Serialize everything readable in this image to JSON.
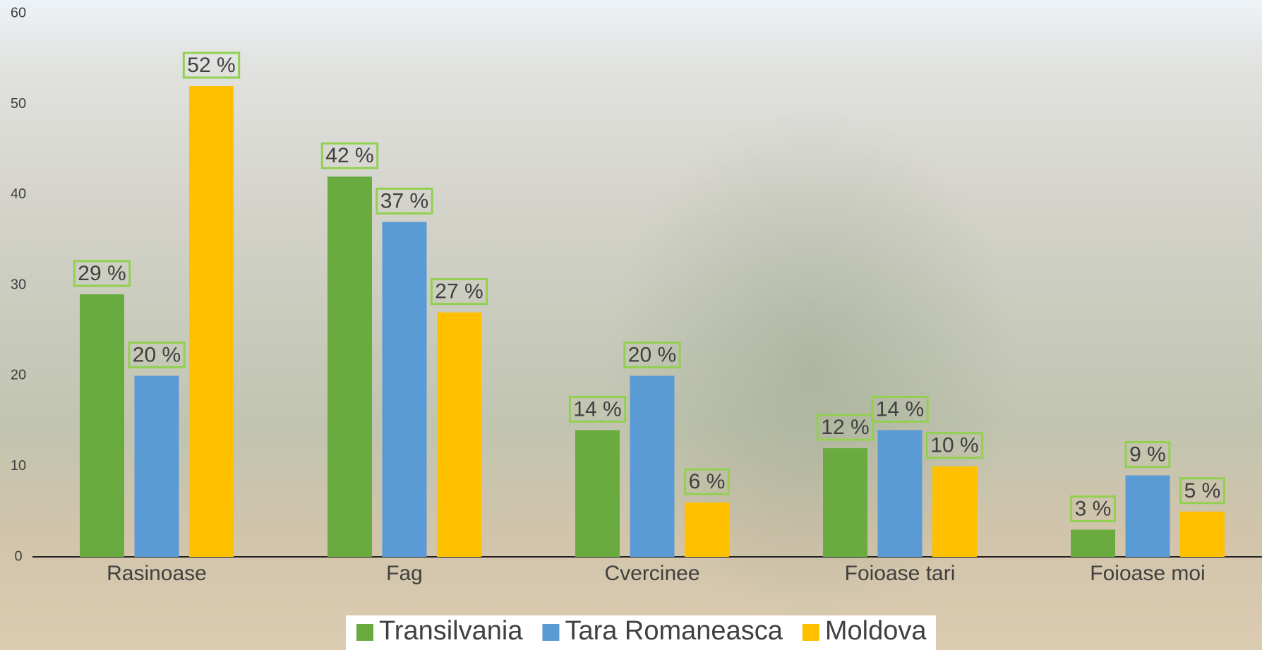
{
  "chart_data": {
    "type": "bar",
    "categories": [
      "Rasinoase",
      "Fag",
      "Cvercinee",
      "Foioase tari",
      "Foioase moi"
    ],
    "series": [
      {
        "name": "Transilvania",
        "color": "#6aab3f",
        "values": [
          29,
          42,
          14,
          12,
          3
        ],
        "value_labels": [
          "29 %",
          "42 %",
          "14 %",
          "12 %",
          "3 %"
        ]
      },
      {
        "name": "Tara Romaneasca",
        "color": "#5b9bd5",
        "values": [
          20,
          37,
          20,
          14,
          9
        ],
        "value_labels": [
          "20 %",
          "37 %",
          "20 %",
          "14 %",
          "9 %"
        ]
      },
      {
        "name": "Moldova",
        "color": "#ffc000",
        "values": [
          52,
          27,
          6,
          10,
          5
        ],
        "value_labels": [
          "52 %",
          "27 %",
          "6 %",
          "10 %",
          "5 %"
        ]
      }
    ],
    "ylim": [
      0,
      60
    ],
    "yticks": [
      0,
      10,
      20,
      30,
      40,
      50,
      60
    ],
    "grid": false,
    "legend": "bottom"
  }
}
